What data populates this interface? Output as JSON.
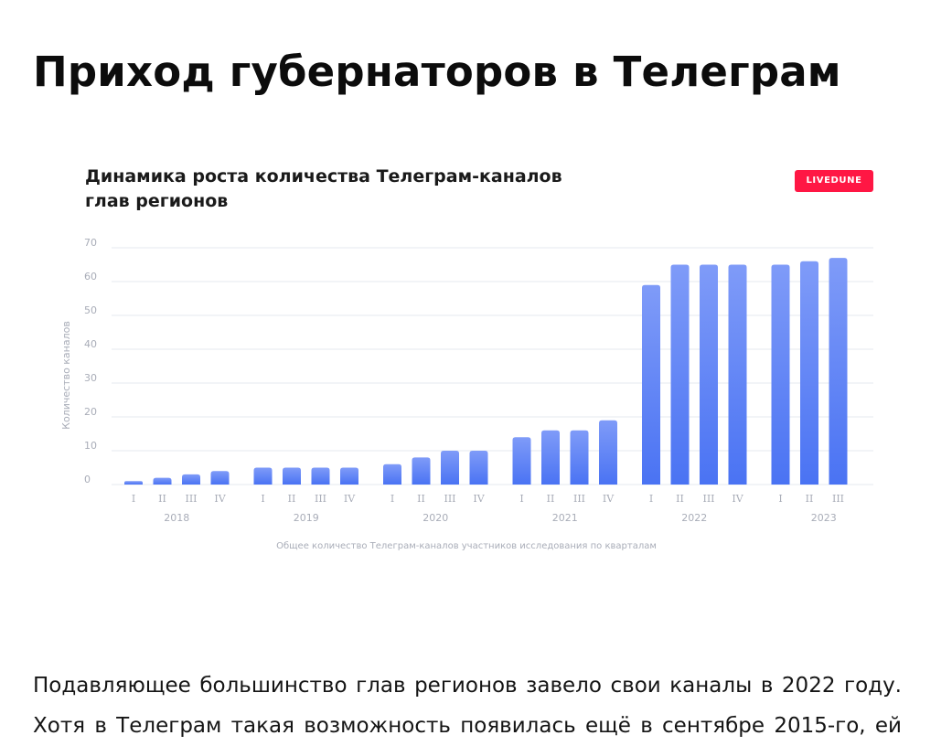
{
  "page": {
    "title": "Приход губернаторов в Телеграм",
    "paragraph_line1": "Подавляющее большинство глав регионов завело свои каналы в 2022 году.",
    "paragraph_line2": "Хотя в Телеграм такая возможность появилась ещё в сентябре 2015-го, ей"
  },
  "brand": {
    "label": "LIVEDUNE",
    "color": "#ff1744"
  },
  "colors": {
    "bar_top": "#7f9bf8",
    "bar_bottom": "#4a73f3",
    "grid": "#e6e9ef",
    "tick_text": "#a9adb8"
  },
  "chart_data": {
    "type": "bar",
    "title": "Динамика роста количества Телеграм-каналов глав регионов",
    "title_lines": [
      "Динамика роста количества Телеграм-каналов",
      "глав регионов"
    ],
    "ylabel": "Количество каналов",
    "xlabel": "Общее количество Телеграм-каналов участников исследования по кварталам",
    "ylim": [
      0,
      70
    ],
    "yticks": [
      0,
      10,
      20,
      30,
      40,
      50,
      60,
      70
    ],
    "grid": true,
    "legend": "none",
    "groups": [
      {
        "year": "2018",
        "quarters": [
          "I",
          "II",
          "III",
          "IV"
        ],
        "values": [
          1,
          2,
          3,
          4
        ]
      },
      {
        "year": "2019",
        "quarters": [
          "I",
          "II",
          "III",
          "IV"
        ],
        "values": [
          5,
          5,
          5,
          5
        ]
      },
      {
        "year": "2020",
        "quarters": [
          "I",
          "II",
          "III",
          "IV"
        ],
        "values": [
          6,
          8,
          10,
          10
        ]
      },
      {
        "year": "2021",
        "quarters": [
          "I",
          "II",
          "III",
          "IV"
        ],
        "values": [
          14,
          16,
          16,
          19
        ]
      },
      {
        "year": "2022",
        "quarters": [
          "I",
          "II",
          "III",
          "IV"
        ],
        "values": [
          59,
          65,
          65,
          65
        ]
      },
      {
        "year": "2023",
        "quarters": [
          "I",
          "II",
          "III"
        ],
        "values": [
          65,
          66,
          67
        ]
      }
    ]
  }
}
